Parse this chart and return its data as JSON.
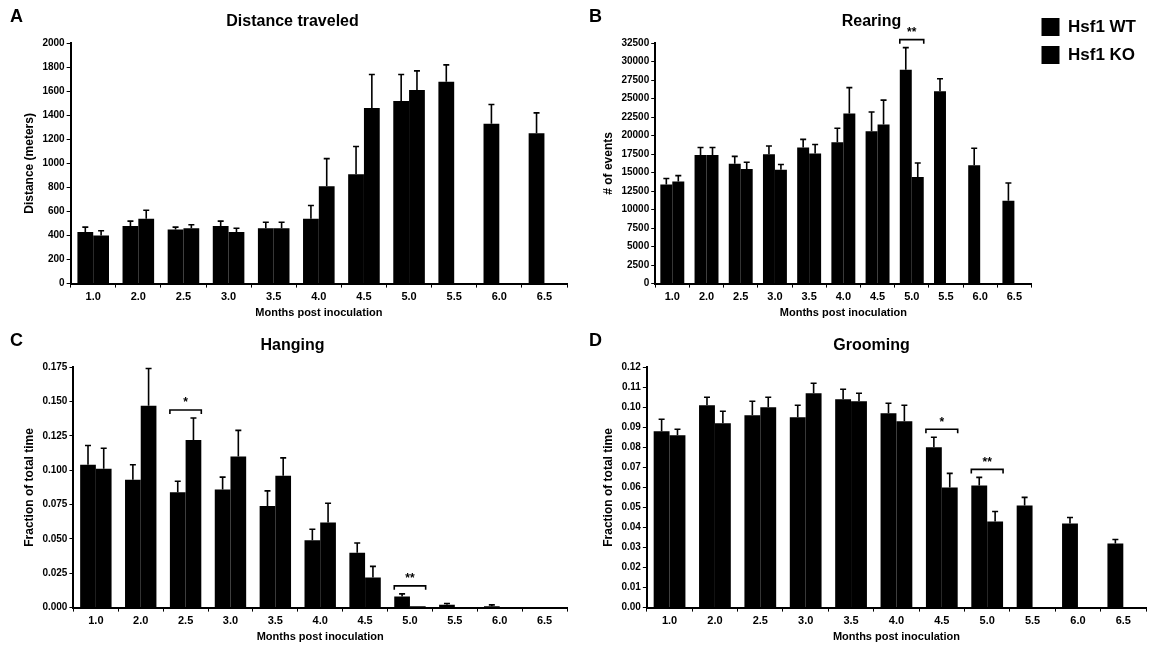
{
  "chart_data": [
    {
      "type": "bar",
      "title": "Distance traveled",
      "xlabel": "Months post inoculation",
      "ylabel": "Distance (meters)",
      "annotations": [
        "A"
      ],
      "categories": [
        "1.0",
        "2.0",
        "2.5",
        "3.0",
        "3.5",
        "4.0",
        "4.5",
        "5.0",
        "5.5",
        "6.0",
        "6.5"
      ],
      "ylim": [
        0,
        2000
      ],
      "yticks": [
        0,
        200,
        400,
        600,
        800,
        1000,
        1200,
        1400,
        1600,
        1800,
        2000
      ],
      "grid": false,
      "series": [
        {
          "color": "#000000",
          "values": [
            430,
            480,
            450,
            480,
            460,
            540,
            910,
            1520,
            1680,
            1330,
            1250
          ],
          "errors": [
            [
              430,
              470
            ],
            [
              480,
              520
            ],
            [
              450,
              470
            ],
            [
              480,
              520
            ],
            [
              460,
              510
            ],
            [
              540,
              650
            ],
            [
              910,
              1140
            ],
            [
              1520,
              1740
            ],
            [
              1680,
              1820
            ],
            [
              1330,
              1490
            ],
            [
              1250,
              1420
            ]
          ]
        },
        {
          "color": "#000000",
          "values": [
            400,
            540,
            460,
            430,
            460,
            810,
            1460,
            1610,
            null,
            null,
            null
          ],
          "errors": [
            [
              400,
              440
            ],
            [
              540,
              610
            ],
            [
              460,
              490
            ],
            [
              430,
              460
            ],
            [
              460,
              510
            ],
            [
              810,
              1040
            ],
            [
              1460,
              1740
            ],
            [
              1610,
              1770
            ],
            null,
            null,
            null
          ]
        }
      ]
    },
    {
      "type": "bar",
      "title": "Rearing",
      "xlabel": "Months post inoculation",
      "ylabel": "# of events",
      "annotations": [
        "B",
        "**"
      ],
      "legend": "top right",
      "categories": [
        "1.0",
        "2.0",
        "2.5",
        "3.0",
        "3.5",
        "4.0",
        "4.5",
        "5.0",
        "5.5",
        "6.0",
        "6.5"
      ],
      "ylim": [
        0,
        32500
      ],
      "yticks": [
        0,
        2500,
        5000,
        7500,
        10000,
        12500,
        15000,
        17500,
        20000,
        22500,
        25000,
        27500,
        30000,
        32500
      ],
      "grid": false,
      "series": [
        {
          "name": "Hsf1 WT",
          "color": "#000000",
          "values": [
            13400,
            17400,
            16200,
            17500,
            18400,
            19100,
            20600,
            28900,
            26000,
            16000,
            11200
          ],
          "errors": [
            [
              13400,
              14200
            ],
            [
              17400,
              18400
            ],
            [
              16200,
              17200
            ],
            [
              17500,
              18600
            ],
            [
              18400,
              19500
            ],
            [
              19100,
              21000
            ],
            [
              20600,
              23200
            ],
            [
              28900,
              31900
            ],
            [
              26000,
              27700
            ],
            [
              16000,
              18300
            ],
            [
              11200,
              13600
            ]
          ]
        },
        {
          "name": "Hsf1 KO",
          "color": "#000000",
          "values": [
            13800,
            17400,
            15500,
            15400,
            17600,
            23000,
            21500,
            14400,
            null,
            null,
            null
          ],
          "errors": [
            [
              13800,
              14600
            ],
            [
              17400,
              18400
            ],
            [
              15500,
              16400
            ],
            [
              15400,
              16100
            ],
            [
              17600,
              18800
            ],
            [
              23000,
              26500
            ],
            [
              21500,
              24800
            ],
            [
              14400,
              16300
            ],
            null,
            null,
            null
          ]
        }
      ]
    },
    {
      "type": "bar",
      "title": "Hanging",
      "xlabel": "Months post inoculation",
      "ylabel": "Fraction of total time",
      "annotations": [
        "C",
        "*",
        "**"
      ],
      "categories": [
        "1.0",
        "2.0",
        "2.5",
        "3.0",
        "3.5",
        "4.0",
        "4.5",
        "5.0",
        "5.5",
        "6.0",
        "6.5"
      ],
      "ylim": [
        0,
        0.175
      ],
      "yticks": [
        {
          "value": 0,
          "label": "0.000"
        },
        {
          "value": 0.025,
          "label": "0.025"
        },
        {
          "value": 0.05,
          "label": "0.050"
        },
        {
          "value": 0.075,
          "label": "0.075"
        },
        {
          "value": 0.1,
          "label": "0.100"
        },
        {
          "value": 0.125,
          "label": "0.125"
        },
        {
          "value": 0.15,
          "label": "0.150"
        },
        {
          "value": 0.175,
          "label": "0.175"
        }
      ],
      "grid": false,
      "series": [
        {
          "color": "#000000",
          "values": [
            0.104,
            0.093,
            0.084,
            0.086,
            0.074,
            0.049,
            0.04,
            0.008,
            0.002,
            0.001,
            0
          ],
          "errors": [
            [
              0.104,
              0.118
            ],
            [
              0.093,
              0.104
            ],
            [
              0.084,
              0.092
            ],
            [
              0.086,
              0.095
            ],
            [
              0.074,
              0.085
            ],
            [
              0.049,
              0.057
            ],
            [
              0.04,
              0.047
            ],
            [
              0.008,
              0.01
            ],
            [
              0.002,
              0.003
            ],
            [
              0.001,
              0.002
            ],
            null
          ]
        },
        {
          "color": "#000000",
          "values": [
            0.101,
            0.147,
            0.122,
            0.11,
            0.096,
            0.062,
            0.022,
            0.001,
            null,
            null,
            null
          ],
          "errors": [
            [
              0.101,
              0.116
            ],
            [
              0.147,
              0.174
            ],
            [
              0.122,
              0.138
            ],
            [
              0.11,
              0.129
            ],
            [
              0.096,
              0.109
            ],
            [
              0.062,
              0.076
            ],
            [
              0.022,
              0.03
            ],
            null,
            null,
            null,
            null
          ]
        }
      ]
    },
    {
      "type": "bar",
      "title": "Grooming",
      "xlabel": "Months post inoculation",
      "ylabel": "Fraction of total time",
      "annotations": [
        "D",
        "*",
        "**"
      ],
      "categories": [
        "1.0",
        "2.0",
        "2.5",
        "3.0",
        "3.5",
        "4.0",
        "4.5",
        "5.0",
        "5.5",
        "6.0",
        "6.5"
      ],
      "ylim": [
        0,
        0.12
      ],
      "yticks": [
        {
          "value": 0,
          "label": "0.00"
        },
        {
          "value": 0.01,
          "label": "0.01"
        },
        {
          "value": 0.02,
          "label": "0.02"
        },
        {
          "value": 0.03,
          "label": "0.03"
        },
        {
          "value": 0.04,
          "label": "0.04"
        },
        {
          "value": 0.05,
          "label": "0.05"
        },
        {
          "value": 0.06,
          "label": "0.06"
        },
        {
          "value": 0.07,
          "label": "0.07"
        },
        {
          "value": 0.08,
          "label": "0.08"
        },
        {
          "value": 0.09,
          "label": "0.09"
        },
        {
          "value": 0.1,
          "label": "0.10"
        },
        {
          "value": 0.11,
          "label": "0.11"
        },
        {
          "value": 0.12,
          "label": "0.12"
        }
      ],
      "grid": false,
      "series": [
        {
          "color": "#000000",
          "values": [
            0.088,
            0.101,
            0.096,
            0.095,
            0.104,
            0.097,
            0.08,
            0.061,
            0.051,
            0.042,
            0.032
          ],
          "errors": [
            [
              0.088,
              0.094
            ],
            [
              0.101,
              0.105
            ],
            [
              0.096,
              0.103
            ],
            [
              0.095,
              0.101
            ],
            [
              0.104,
              0.109
            ],
            [
              0.097,
              0.102
            ],
            [
              0.08,
              0.085
            ],
            [
              0.061,
              0.065
            ],
            [
              0.051,
              0.055
            ],
            [
              0.042,
              0.045
            ],
            [
              0.032,
              0.034
            ]
          ]
        },
        {
          "color": "#000000",
          "values": [
            0.086,
            0.092,
            0.1,
            0.107,
            0.103,
            0.093,
            0.06,
            0.043,
            null,
            null,
            null
          ],
          "errors": [
            [
              0.086,
              0.089
            ],
            [
              0.092,
              0.098
            ],
            [
              0.1,
              0.105
            ],
            [
              0.107,
              0.112
            ],
            [
              0.103,
              0.107
            ],
            [
              0.093,
              0.101
            ],
            [
              0.06,
              0.067
            ],
            [
              0.043,
              0.048
            ],
            null,
            null,
            null
          ]
        }
      ]
    }
  ]
}
